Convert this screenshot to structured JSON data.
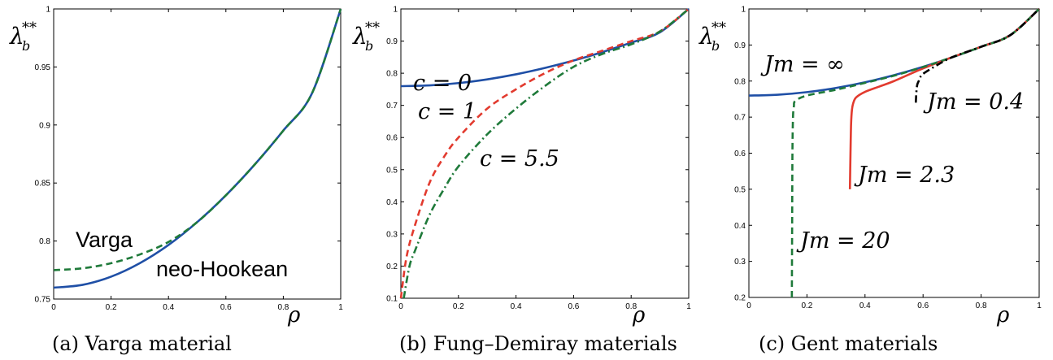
{
  "chart_data": [
    {
      "type": "line",
      "caption": "(a) Varga material",
      "xlabel": "ρ",
      "ylabel": "λ",
      "ylabel_subscript": "b",
      "ylabel_superscript": "**",
      "xlim": [
        0,
        1
      ],
      "ylim": [
        0.75,
        1
      ],
      "xticks": [
        "0",
        "0.2",
        "0.4",
        "0.6",
        "0.8",
        "1"
      ],
      "yticks": [
        "0.75",
        "0.8",
        "0.85",
        "0.9",
        "0.95",
        "1"
      ],
      "series": [
        {
          "name": "neo-Hookean",
          "color": "#1f4fa6",
          "style": "solid",
          "x": [
            0,
            0.1,
            0.2,
            0.3,
            0.4,
            0.5,
            0.6,
            0.7,
            0.8,
            0.9,
            1.0
          ],
          "y": [
            0.7598,
            0.7622,
            0.7693,
            0.7809,
            0.7966,
            0.8163,
            0.8394,
            0.8658,
            0.8952,
            0.9273,
            0.9999
          ]
        },
        {
          "name": "Varga",
          "color": "#1f7a3a",
          "style": "dashed",
          "x": [
            0,
            0.1,
            0.2,
            0.3,
            0.4,
            0.5,
            0.6,
            0.7,
            0.8,
            0.9,
            1.0
          ],
          "y": [
            0.7749,
            0.7765,
            0.7809,
            0.7884,
            0.7992,
            0.8163,
            0.8394,
            0.8658,
            0.8952,
            0.9273,
            0.9999
          ]
        }
      ],
      "annotations": [
        "Varga",
        "neo-Hookean"
      ]
    },
    {
      "type": "line",
      "caption": "(b) Fung–Demiray materials",
      "xlabel": "ρ",
      "ylabel": "λ",
      "ylabel_subscript": "b",
      "ylabel_superscript": "**",
      "xlim": [
        0,
        1
      ],
      "ylim": [
        0.1,
        1
      ],
      "xticks": [
        "0",
        "0.2",
        "0.4",
        "0.6",
        "0.8",
        "1"
      ],
      "yticks": [
        "0.1",
        "0.2",
        "0.3",
        "0.4",
        "0.5",
        "0.6",
        "0.7",
        "0.8",
        "0.9",
        "1"
      ],
      "series": [
        {
          "name": "c = 0",
          "color": "#1f4fa6",
          "style": "solid",
          "x": [
            0,
            0.1,
            0.2,
            0.3,
            0.4,
            0.5,
            0.6,
            0.7,
            0.8,
            0.9,
            1.0
          ],
          "y": [
            0.7598,
            0.7622,
            0.7693,
            0.7809,
            0.7966,
            0.8163,
            0.8394,
            0.8658,
            0.8952,
            0.9273,
            0.9999
          ]
        },
        {
          "name": "c = 1",
          "color": "#e23a2e",
          "style": "dashed",
          "x": [
            0.0,
            0.02,
            0.05,
            0.1,
            0.15,
            0.2,
            0.3,
            0.4,
            0.5,
            0.6,
            0.7,
            0.8,
            0.9,
            1.0
          ],
          "y": [
            0.1,
            0.23,
            0.33,
            0.46,
            0.54,
            0.6,
            0.69,
            0.75,
            0.8,
            0.84,
            0.87,
            0.9,
            0.93,
            1.0
          ]
        },
        {
          "name": "c = 5.5",
          "color": "#1f7a3a",
          "style": "dashdot",
          "x": [
            0.01,
            0.03,
            0.05,
            0.1,
            0.15,
            0.2,
            0.3,
            0.4,
            0.5,
            0.6,
            0.7,
            0.8,
            0.9,
            1.0
          ],
          "y": [
            0.1,
            0.2,
            0.25,
            0.36,
            0.44,
            0.51,
            0.61,
            0.69,
            0.76,
            0.82,
            0.86,
            0.89,
            0.93,
            1.0
          ]
        }
      ],
      "annotations": [
        "c = 0",
        "c = 1",
        "c = 5.5"
      ]
    },
    {
      "type": "line",
      "caption": "(c) Gent materials",
      "xlabel": "ρ",
      "ylabel": "λ",
      "ylabel_subscript": "b",
      "ylabel_superscript": "**",
      "xlim": [
        0,
        1
      ],
      "ylim": [
        0.2,
        1
      ],
      "xticks": [
        "0",
        "0.2",
        "0.4",
        "0.6",
        "0.8",
        "1"
      ],
      "yticks": [
        "0.2",
        "0.3",
        "0.4",
        "0.5",
        "0.6",
        "0.7",
        "0.8",
        "0.9",
        "1"
      ],
      "series": [
        {
          "name": "Jm = ∞",
          "color": "#1f4fa6",
          "style": "solid",
          "x": [
            0,
            0.1,
            0.2,
            0.3,
            0.4,
            0.5,
            0.6,
            0.7,
            0.8,
            0.9,
            1.0
          ],
          "y": [
            0.7598,
            0.7622,
            0.7693,
            0.7809,
            0.7966,
            0.8163,
            0.8394,
            0.8658,
            0.8952,
            0.9273,
            0.9999
          ]
        },
        {
          "name": "Jm = 20",
          "color": "#1f7a3a",
          "style": "dashed",
          "x": [
            0.148,
            0.149,
            0.15,
            0.152,
            0.155,
            0.16,
            0.2,
            0.3,
            0.4,
            0.5,
            0.6,
            0.7,
            0.8,
            0.9,
            1.0
          ],
          "y": [
            0.2,
            0.4,
            0.6,
            0.7,
            0.73,
            0.745,
            0.76,
            0.776,
            0.795,
            0.815,
            0.839,
            0.866,
            0.895,
            0.927,
            1.0
          ]
        },
        {
          "name": "Jm = 2.3",
          "color": "#e23a2e",
          "style": "solid",
          "x": [
            0.348,
            0.35,
            0.352,
            0.355,
            0.36,
            0.37,
            0.4,
            0.45,
            0.5,
            0.6,
            0.7,
            0.8,
            0.9,
            1.0
          ],
          "y": [
            0.5,
            0.6,
            0.68,
            0.72,
            0.74,
            0.755,
            0.77,
            0.785,
            0.8,
            0.835,
            0.866,
            0.895,
            0.927,
            1.0
          ]
        },
        {
          "name": "Jm = 0.4",
          "color": "#000000",
          "style": "dashdot",
          "x": [
            0.575,
            0.577,
            0.58,
            0.585,
            0.59,
            0.6,
            0.65,
            0.7,
            0.8,
            0.9,
            1.0
          ],
          "y": [
            0.74,
            0.77,
            0.79,
            0.8,
            0.81,
            0.82,
            0.845,
            0.866,
            0.895,
            0.927,
            1.0
          ]
        }
      ],
      "annotations": [
        "Jm = ∞",
        "Jm = 0.4",
        "Jm = 2.3",
        "Jm = 20"
      ]
    }
  ]
}
